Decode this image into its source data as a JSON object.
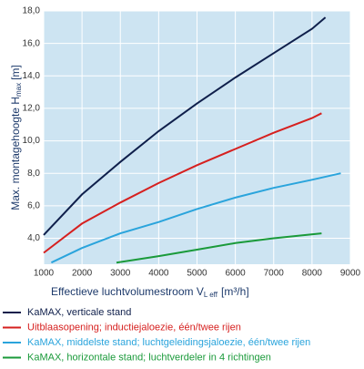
{
  "chart_data": {
    "type": "line",
    "y_label": {
      "main": "Max. montagehoogte H",
      "sub": "max",
      "unit": "[m]"
    },
    "x_label": {
      "main": "Effectieve luchtvolumestroom V",
      "sub": "L eff",
      "unit": "[m³/h]"
    },
    "xlim": [
      1000,
      9000
    ],
    "xticks": [
      1000,
      2000,
      3000,
      4000,
      5000,
      6000,
      7000,
      8000,
      9000
    ],
    "ylim": [
      2.4,
      18
    ],
    "yticks": [
      {
        "value": 4,
        "label": "4,0"
      },
      {
        "value": 6,
        "label": "6,0"
      },
      {
        "value": 8,
        "label": "8,0"
      },
      {
        "value": 10,
        "label": "10,0"
      },
      {
        "value": 12,
        "label": "12,0"
      },
      {
        "value": 14,
        "label": "14,0"
      },
      {
        "value": 16,
        "label": "16,0"
      },
      {
        "value": 18,
        "label": "18,0"
      }
    ],
    "grid": true,
    "series": [
      {
        "name": "KaMAX, verticale stand",
        "color": "#0f1f4b",
        "x": [
          1000,
          2000,
          3000,
          4000,
          5000,
          6000,
          7000,
          8000,
          8350
        ],
        "values": [
          4.2,
          6.7,
          8.7,
          10.6,
          12.3,
          13.9,
          15.4,
          16.9,
          17.6
        ]
      },
      {
        "name": "Uitblaasopening; inductiejaloezie, één/twee rijen",
        "color": "#d6201f",
        "x": [
          1000,
          2000,
          3000,
          4000,
          5000,
          6000,
          7000,
          8000,
          8250
        ],
        "values": [
          3.1,
          4.9,
          6.2,
          7.4,
          8.5,
          9.5,
          10.5,
          11.4,
          11.7
        ]
      },
      {
        "name": "KaMAX, middelste stand; luchtgeleidingsjaloezie, één/twee rijen",
        "color": "#2aa4dc",
        "x": [
          1200,
          2000,
          3000,
          4000,
          5000,
          6000,
          7000,
          8000,
          8750
        ],
        "values": [
          2.5,
          3.4,
          4.3,
          5.0,
          5.8,
          6.5,
          7.1,
          7.6,
          8.0
        ]
      },
      {
        "name": "KaMAX, horizontale stand; luchtverdeler in 4 richtingen",
        "color": "#1a9a3a",
        "x": [
          2900,
          4000,
          5000,
          6000,
          7000,
          8250
        ],
        "values": [
          2.5,
          2.9,
          3.3,
          3.7,
          4.0,
          4.3
        ]
      }
    ]
  }
}
